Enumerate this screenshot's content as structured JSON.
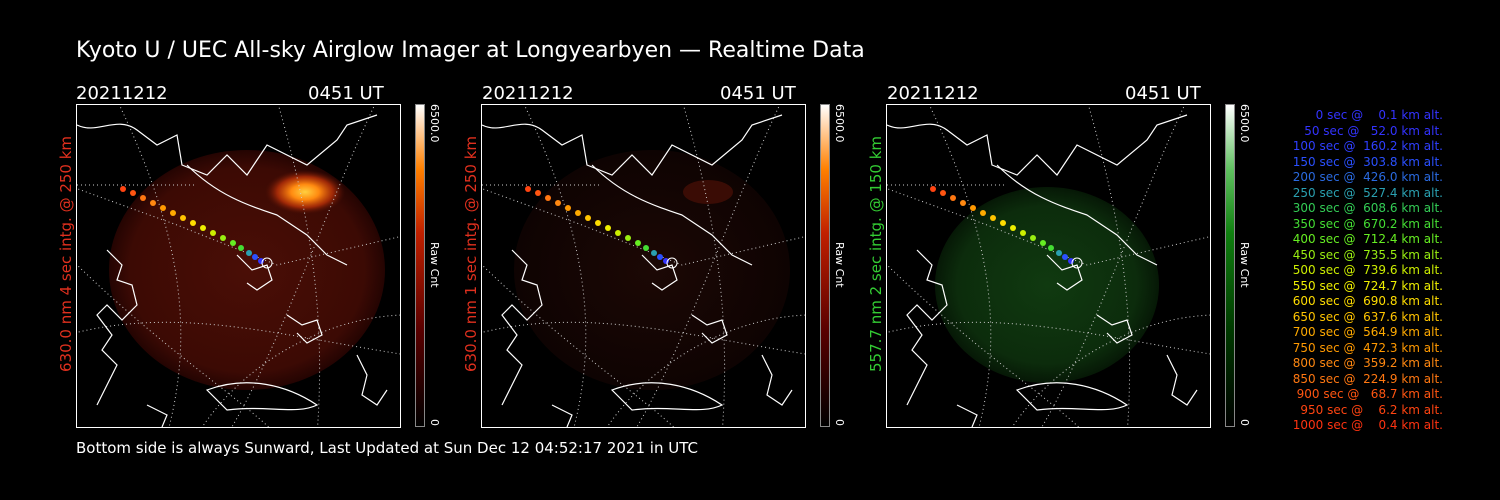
{
  "title": "Kyoto U / UEC All-sky Airglow Imager at Longyearbyen — Realtime Data",
  "footer": "Bottom side is always Sunward, Last Updated at Sun Dec 12 04:52:17 2021 in UTC",
  "panels": [
    {
      "date": "20211212",
      "time": "0451 UT",
      "label": "630.0 nm  4 sec intg. @ 250 km",
      "label_color": "#e0301e",
      "cbar_max": "6500.0",
      "cbar_min": "0",
      "cbar_unit": "Raw Cnt",
      "cmap": "red"
    },
    {
      "date": "20211212",
      "time": "0451 UT",
      "label": "630.0 nm  1 sec intg. @ 250 km",
      "label_color": "#e0301e",
      "cbar_max": "6500.0",
      "cbar_min": "0",
      "cbar_unit": "Raw Cnt",
      "cmap": "red"
    },
    {
      "date": "20211212",
      "time": "0451 UT",
      "label": "557.7 nm  2 sec intg. @ 150 km",
      "label_color": "#33cc33",
      "cbar_max": "6500.0",
      "cbar_min": "0",
      "cbar_unit": "Raw Cnt",
      "cmap": "green"
    }
  ],
  "legend": [
    {
      "text": "   0 sec @    0.1 km alt.",
      "color": "#3333ff"
    },
    {
      "text": "  50 sec @   52.0 km alt.",
      "color": "#3333ff"
    },
    {
      "text": " 100 sec @  160.2 km alt.",
      "color": "#2f3fff"
    },
    {
      "text": " 150 sec @  303.8 km alt.",
      "color": "#2a50ff"
    },
    {
      "text": " 200 sec @  426.0 km alt.",
      "color": "#2a6ae0"
    },
    {
      "text": " 250 sec @  527.4 km alt.",
      "color": "#2aa0b0"
    },
    {
      "text": " 300 sec @  608.6 km alt.",
      "color": "#33cc55"
    },
    {
      "text": " 350 sec @  670.2 km alt.",
      "color": "#44dd33"
    },
    {
      "text": " 400 sec @  712.4 km alt.",
      "color": "#66ee22"
    },
    {
      "text": " 450 sec @  735.5 km alt.",
      "color": "#99ee11"
    },
    {
      "text": " 500 sec @  739.6 km alt.",
      "color": "#ccee00"
    },
    {
      "text": " 550 sec @  724.7 km alt.",
      "color": "#eeee00"
    },
    {
      "text": " 600 sec @  690.8 km alt.",
      "color": "#ffdd00"
    },
    {
      "text": " 650 sec @  637.6 km alt.",
      "color": "#ffc400"
    },
    {
      "text": " 700 sec @  564.9 km alt.",
      "color": "#ffaa00"
    },
    {
      "text": " 750 sec @  472.3 km alt.",
      "color": "#ff9900"
    },
    {
      "text": " 800 sec @  359.2 km alt.",
      "color": "#ff8811"
    },
    {
      "text": " 850 sec @  224.9 km alt.",
      "color": "#ff7711"
    },
    {
      "text": " 900 sec @   68.7 km alt.",
      "color": "#ff5511"
    },
    {
      "text": " 950 sec @    6.2 km alt.",
      "color": "#ff4411"
    },
    {
      "text": "1000 sec @    0.4 km alt.",
      "color": "#ff3311"
    }
  ]
}
